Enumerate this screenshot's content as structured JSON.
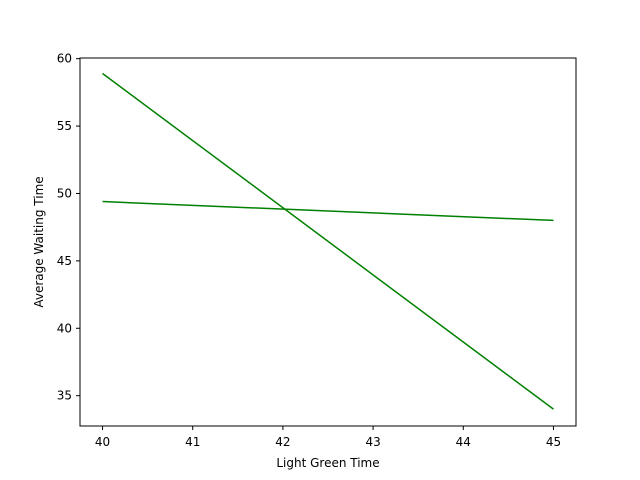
{
  "chart_data": {
    "type": "line",
    "title": "",
    "xlabel": "Light Green Time",
    "ylabel": "Average Waiting Time",
    "xlim": [
      39.75,
      45.25
    ],
    "ylim": [
      32.75,
      60.05
    ],
    "x_ticks": [
      40,
      41,
      42,
      43,
      44,
      45
    ],
    "y_ticks": [
      35,
      40,
      45,
      50,
      55,
      60
    ],
    "grid": false,
    "legend": "none",
    "series": [
      {
        "color": "#008000",
        "x": [
          40,
          45
        ],
        "y": [
          58.9,
          34.0
        ]
      },
      {
        "color": "#008000",
        "x": [
          40,
          45
        ],
        "y": [
          49.4,
          48.0
        ]
      }
    ]
  }
}
